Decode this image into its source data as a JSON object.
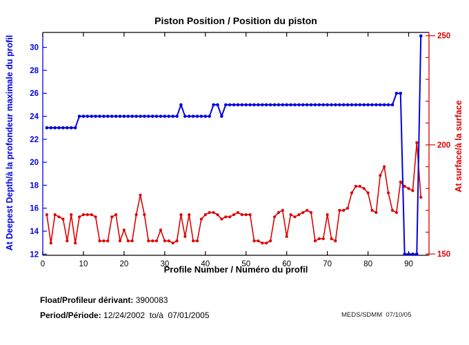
{
  "footer": {
    "float_label": "Float/Profileur dérivant:",
    "float_value": "3900083",
    "period_label": "Period/Période:",
    "period_value": "12/24/2002  to/à  07/01/2005",
    "note": "MEDS/SDMM  07/10/05"
  },
  "colors": {
    "deep_series": "#0000dd",
    "surface_series": "#dd0000",
    "axis_box": "#000000",
    "left_axis": "#0000ee",
    "right_axis": "#dd0000"
  },
  "chart_data": {
    "type": "line",
    "title": "Piston Position / Position du piston",
    "xlabel": "Profile Number / Numéro du profil",
    "ylabel_left": "At Deepest Depth/à la profondeur maximale du profil",
    "ylabel_right": "At surface/à la surface",
    "xlim": [
      0,
      95
    ],
    "xticks": [
      0,
      10,
      20,
      30,
      40,
      50,
      60,
      70,
      80,
      90
    ],
    "ylim_left": [
      11.9,
      31.3
    ],
    "yticks_left": [
      12,
      14,
      16,
      18,
      20,
      22,
      24,
      26,
      28,
      30
    ],
    "ylim_right": [
      149.4,
      251.5
    ],
    "yticks_right": [
      150,
      200,
      250
    ],
    "yticks_right_minor_step": 10,
    "grid": false,
    "legend": "none",
    "series": [
      {
        "name": "At Deepest Depth / à la profondeur maximale du profil",
        "axis": "left",
        "color": "#0000dd",
        "x_start": 1,
        "values": [
          23,
          23,
          23,
          23,
          23,
          23,
          23,
          23,
          24,
          24,
          24,
          24,
          24,
          24,
          24,
          24,
          24,
          24,
          24,
          24,
          24,
          24,
          24,
          24,
          24,
          24,
          24,
          24,
          24,
          24,
          24,
          24,
          24,
          25,
          24,
          24,
          24,
          24,
          24,
          24,
          24,
          25,
          25,
          24,
          25,
          25,
          25,
          25,
          25,
          25,
          25,
          25,
          25,
          25,
          25,
          25,
          25,
          25,
          25,
          25,
          25,
          25,
          25,
          25,
          25,
          25,
          25,
          25,
          25,
          25,
          25,
          25,
          25,
          25,
          25,
          25,
          25,
          25,
          25,
          25,
          25,
          25,
          25,
          25,
          25,
          25,
          26,
          26,
          12,
          12,
          12,
          12,
          31
        ]
      },
      {
        "name": "At surface / à la surface",
        "axis": "right",
        "color": "#dd0000",
        "x_start": 1,
        "values": [
          168,
          155,
          168,
          167,
          166,
          156,
          168,
          155,
          167,
          168,
          168,
          168,
          167,
          156,
          156,
          156,
          167,
          168,
          156,
          161,
          156,
          156,
          168,
          177,
          168,
          156,
          156,
          156,
          161,
          156,
          156,
          155,
          156,
          168,
          158,
          168,
          156,
          156,
          166,
          168,
          169,
          169,
          168,
          166,
          167,
          167,
          168,
          169,
          168,
          168,
          168,
          156,
          156,
          155,
          155,
          156,
          167,
          169,
          170,
          158,
          168,
          167,
          168,
          169,
          170,
          169,
          156,
          157,
          157,
          168,
          157,
          156,
          170,
          170,
          171,
          178,
          181,
          181,
          180,
          178,
          170,
          169,
          186,
          190,
          178,
          170,
          169,
          183,
          181,
          180,
          179,
          201,
          176
        ]
      }
    ]
  }
}
